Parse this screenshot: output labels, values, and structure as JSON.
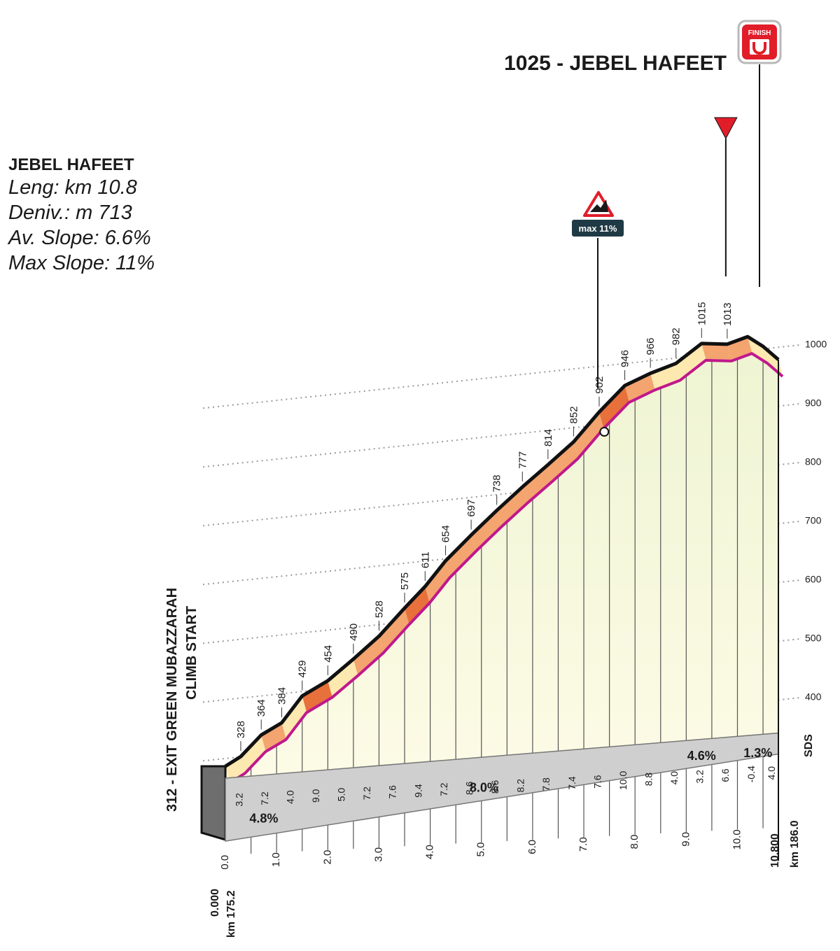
{
  "info": {
    "title": "JEBEL HAFEET",
    "length": "Leng: km 10.8",
    "deniv": "Deniv.: m 713",
    "avg_slope": "Av. Slope: 6.6%",
    "max_slope": "Max Slope: 11%"
  },
  "summit_label": "1025 - JEBEL HAFEET",
  "finish_label": "FINISH",
  "start_label_1": "312 - EXIT GREEN MUBAZZARAH",
  "start_label_2": "CLIMB START",
  "max_badge": "max 11%",
  "sds_label": "SDS",
  "start_km_1": "0.000",
  "start_km_2": "km 175.2",
  "end_km_1": "10.800",
  "end_km_2": "km 186.0",
  "chart_data": {
    "type": "area",
    "title": "JEBEL HAFEET",
    "xlabel": "km",
    "ylabel": "m",
    "xlim": [
      0,
      10.8
    ],
    "ylim": [
      312,
      1025
    ],
    "distance_points": [
      0,
      0.3,
      0.7,
      1.1,
      1.5,
      2.0,
      2.5,
      3.0,
      3.5,
      3.9,
      4.3,
      4.8,
      5.3,
      5.8,
      6.3,
      6.8,
      7.3,
      7.8,
      8.3,
      8.8,
      9.3,
      9.8,
      10.2,
      10.5,
      10.8
    ],
    "altitudes": [
      312,
      328,
      364,
      384,
      429,
      454,
      490,
      528,
      575,
      611,
      654,
      697,
      738,
      777,
      814,
      852,
      902,
      946,
      966,
      982,
      1015,
      1013,
      1025,
      1008,
      985
    ],
    "altitude_labels": [
      {
        "x": 0.3,
        "label": "328"
      },
      {
        "x": 0.7,
        "label": "364"
      },
      {
        "x": 1.1,
        "label": "384"
      },
      {
        "x": 1.5,
        "label": "429"
      },
      {
        "x": 2.0,
        "label": "454"
      },
      {
        "x": 2.5,
        "label": "490"
      },
      {
        "x": 3.0,
        "label": "528"
      },
      {
        "x": 3.5,
        "label": "575"
      },
      {
        "x": 3.9,
        "label": "611"
      },
      {
        "x": 4.3,
        "label": "654"
      },
      {
        "x": 4.8,
        "label": "697"
      },
      {
        "x": 5.3,
        "label": "738"
      },
      {
        "x": 5.8,
        "label": "777"
      },
      {
        "x": 6.3,
        "label": "814"
      },
      {
        "x": 6.8,
        "label": "852"
      },
      {
        "x": 7.3,
        "label": "902"
      },
      {
        "x": 7.8,
        "label": "946"
      },
      {
        "x": 8.3,
        "label": "966"
      },
      {
        "x": 8.8,
        "label": "982"
      },
      {
        "x": 9.3,
        "label": "1015"
      },
      {
        "x": 9.8,
        "label": "1013"
      }
    ],
    "gradients": [
      {
        "from": 0.0,
        "to": 0.5,
        "value": "3.2"
      },
      {
        "from": 0.5,
        "to": 1.0,
        "value": "7.2"
      },
      {
        "from": 1.0,
        "to": 1.5,
        "value": "4.0"
      },
      {
        "from": 1.5,
        "to": 2.0,
        "value": "9.0"
      },
      {
        "from": 2.0,
        "to": 2.5,
        "value": "5.0"
      },
      {
        "from": 2.5,
        "to": 3.0,
        "value": "7.2"
      },
      {
        "from": 3.0,
        "to": 3.5,
        "value": "7.6"
      },
      {
        "from": 3.5,
        "to": 4.0,
        "value": "9.4"
      },
      {
        "from": 4.0,
        "to": 4.5,
        "value": "7.2"
      },
      {
        "from": 4.5,
        "to": 5.0,
        "value": "8.6"
      },
      {
        "from": 5.0,
        "to": 5.5,
        "value": "8.6"
      },
      {
        "from": 5.5,
        "to": 6.0,
        "value": "8.2"
      },
      {
        "from": 6.0,
        "to": 6.5,
        "value": "7.8"
      },
      {
        "from": 6.5,
        "to": 7.0,
        "value": "7.4"
      },
      {
        "from": 7.0,
        "to": 7.5,
        "value": "7.6"
      },
      {
        "from": 7.5,
        "to": 8.0,
        "value": "10.0"
      },
      {
        "from": 8.0,
        "to": 8.5,
        "value": "8.8"
      },
      {
        "from": 8.5,
        "to": 9.0,
        "value": "4.0"
      },
      {
        "from": 9.0,
        "to": 9.5,
        "value": "3.2"
      },
      {
        "from": 9.5,
        "to": 10.0,
        "value": "6.6"
      },
      {
        "from": 10.0,
        "to": 10.5,
        "value": "-0.4"
      },
      {
        "from": 10.5,
        "to": 10.8,
        "value": "4.0"
      }
    ],
    "segments": [
      {
        "from": 0.0,
        "to": 1.5,
        "label": "4.8%"
      },
      {
        "from": 1.5,
        "to": 8.6,
        "label": "8.0%"
      },
      {
        "from": 8.6,
        "to": 10.0,
        "label": "4.6%"
      },
      {
        "from": 10.0,
        "to": 10.8,
        "label": "1.3%"
      }
    ],
    "x_ticks": [
      "0.0",
      "1.0",
      "2.0",
      "3.0",
      "4.0",
      "5.0",
      "6.0",
      "7.0",
      "8.0",
      "9.0",
      "10.0"
    ],
    "y_ticks": [
      "400",
      "500",
      "600",
      "700",
      "800",
      "900",
      "1000"
    ],
    "max_slope_x": 7.4,
    "flamme_rouge_x": 9.8
  },
  "colors": {
    "road_line": "#c0188c",
    "steep_band": "#e8703a",
    "mid_band": "#f4a46e",
    "easy_band": "#fde8b0",
    "fill_top": "#f6f9e6",
    "fill_bottom": "#fdfbe4",
    "base_band": "#cfcfcf",
    "finish_red": "#e11d2a"
  }
}
